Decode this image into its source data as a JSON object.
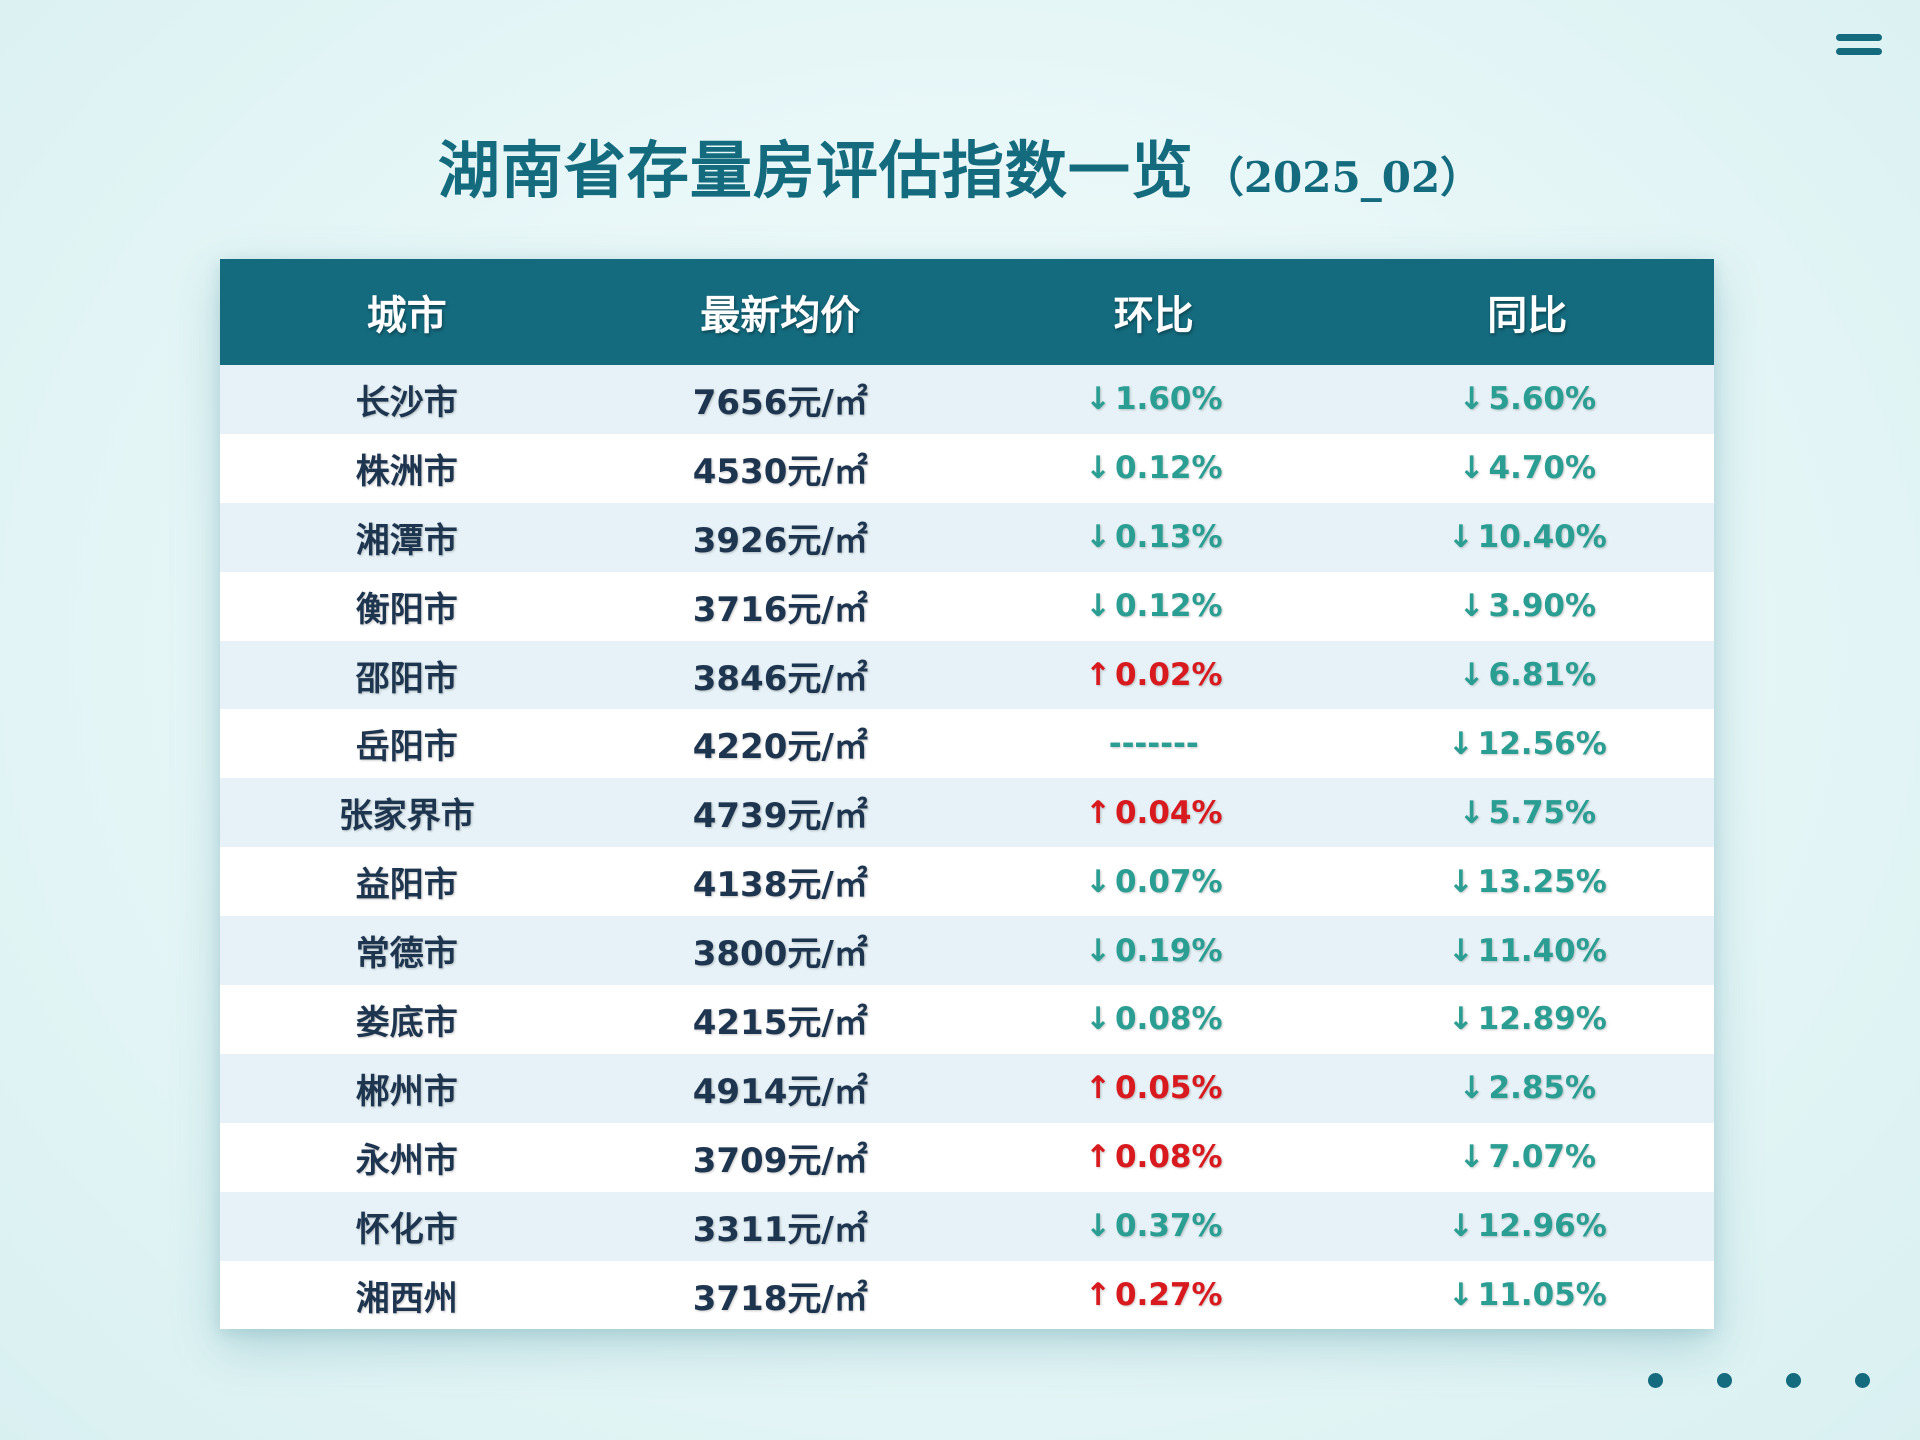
{
  "colors": {
    "primary": "#146b7e",
    "down": "#2a9e92",
    "up": "#d8191e",
    "text": "#1e3550",
    "row_alt": "#e6f2f7"
  },
  "header": {
    "title": "湖南省存量房评估指数一览",
    "subtitle": "（2025_02）"
  },
  "icons": {
    "menu": "menu-icon",
    "up_arrow": "↑",
    "down_arrow": "↓"
  },
  "table": {
    "columns": [
      "城市",
      "最新均价",
      "环比",
      "同比"
    ],
    "rows": [
      {
        "city": "长沙市",
        "price": "7656元/㎡",
        "mom_dir": "down",
        "mom": "1.60%",
        "yoy_dir": "down",
        "yoy": "5.60%"
      },
      {
        "city": "株洲市",
        "price": "4530元/㎡",
        "mom_dir": "down",
        "mom": "0.12%",
        "yoy_dir": "down",
        "yoy": "4.70%"
      },
      {
        "city": "湘潭市",
        "price": "3926元/㎡",
        "mom_dir": "down",
        "mom": "0.13%",
        "yoy_dir": "down",
        "yoy": "10.40%"
      },
      {
        "city": "衡阳市",
        "price": "3716元/㎡",
        "mom_dir": "down",
        "mom": "0.12%",
        "yoy_dir": "down",
        "yoy": "3.90%"
      },
      {
        "city": "邵阳市",
        "price": "3846元/㎡",
        "mom_dir": "up",
        "mom": "0.02%",
        "yoy_dir": "down",
        "yoy": "6.81%"
      },
      {
        "city": "岳阳市",
        "price": "4220元/㎡",
        "mom_dir": "none",
        "mom": "-------",
        "yoy_dir": "down",
        "yoy": "12.56%"
      },
      {
        "city": "张家界市",
        "price": "4739元/㎡",
        "mom_dir": "up",
        "mom": "0.04%",
        "yoy_dir": "down",
        "yoy": "5.75%"
      },
      {
        "city": "益阳市",
        "price": "4138元/㎡",
        "mom_dir": "down",
        "mom": "0.07%",
        "yoy_dir": "down",
        "yoy": "13.25%"
      },
      {
        "city": "常德市",
        "price": "3800元/㎡",
        "mom_dir": "down",
        "mom": "0.19%",
        "yoy_dir": "down",
        "yoy": "11.40%"
      },
      {
        "city": "娄底市",
        "price": "4215元/㎡",
        "mom_dir": "down",
        "mom": "0.08%",
        "yoy_dir": "down",
        "yoy": "12.89%"
      },
      {
        "city": "郴州市",
        "price": "4914元/㎡",
        "mom_dir": "up",
        "mom": "0.05%",
        "yoy_dir": "down",
        "yoy": "2.85%"
      },
      {
        "city": "永州市",
        "price": "3709元/㎡",
        "mom_dir": "up",
        "mom": "0.08%",
        "yoy_dir": "down",
        "yoy": "7.07%"
      },
      {
        "city": "怀化市",
        "price": "3311元/㎡",
        "mom_dir": "down",
        "mom": "0.37%",
        "yoy_dir": "down",
        "yoy": "12.96%"
      },
      {
        "city": "湘西州",
        "price": "3718元/㎡",
        "mom_dir": "up",
        "mom": "0.27%",
        "yoy_dir": "down",
        "yoy": "11.05%"
      }
    ]
  },
  "pagination": {
    "dots": 4
  }
}
